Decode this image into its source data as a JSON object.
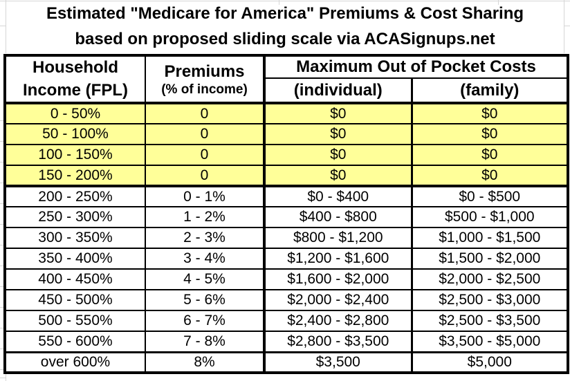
{
  "title": {
    "line1": "Estimated \"Medicare for America\" Premiums & Cost Sharing",
    "line2": "based on proposed sliding scale via ACASignups.net"
  },
  "table": {
    "headers": {
      "household_line1": "Household",
      "household_line2": "Income (FPL)",
      "premiums_line1": "Premiums",
      "premiums_line2": "(% of income)",
      "moop_group": "Maximum Out of Pocket Costs",
      "moop_individual": "(individual)",
      "moop_family": "(family)"
    },
    "rows": [
      {
        "income": "0 - 50%",
        "premium": "0",
        "individual": "$0",
        "family": "$0",
        "highlight": true
      },
      {
        "income": "50 - 100%",
        "premium": "0",
        "individual": "$0",
        "family": "$0",
        "highlight": true
      },
      {
        "income": "100 - 150%",
        "premium": "0",
        "individual": "$0",
        "family": "$0",
        "highlight": true
      },
      {
        "income": "150 - 200%",
        "premium": "0",
        "individual": "$0",
        "family": "$0",
        "highlight": true
      },
      {
        "income": "200 - 250%",
        "premium": "0 - 1%",
        "individual": "$0 - $400",
        "family": "$0 - $500",
        "highlight": false
      },
      {
        "income": "250 - 300%",
        "premium": "1 - 2%",
        "individual": "$400 - $800",
        "family": "$500 - $1,000",
        "highlight": false
      },
      {
        "income": "300 - 350%",
        "premium": "2 - 3%",
        "individual": "$800 - $1,200",
        "family": "$1,000 - $1,500",
        "highlight": false
      },
      {
        "income": "350 - 400%",
        "premium": "3 - 4%",
        "individual": "$1,200 - $1,600",
        "family": "$1,500 - $2,000",
        "highlight": false
      },
      {
        "income": "400 - 450%",
        "premium": "4 - 5%",
        "individual": "$1,600 - $2,000",
        "family": "$2,000 - $2,500",
        "highlight": false
      },
      {
        "income": "450 - 500%",
        "premium": "5 - 6%",
        "individual": "$2,000 - $2,400",
        "family": "$2,500 - $3,000",
        "highlight": false
      },
      {
        "income": "500 - 550%",
        "premium": "6 - 7%",
        "individual": "$2,400 - $2,800",
        "family": "$2,500 - $3,500",
        "highlight": false
      },
      {
        "income": "550 - 600%",
        "premium": "7 - 8%",
        "individual": "$2,800 - $3,500",
        "family": "$3,500 - $5,000",
        "highlight": false
      },
      {
        "income": "over 600%",
        "premium": "8%",
        "individual": "$3,500",
        "family": "$5,000",
        "highlight": false
      }
    ]
  },
  "colors": {
    "highlight_row": "#FFFF99",
    "border": "#000000",
    "gridline": "#D6D6D6",
    "background": "#FFFFFF"
  }
}
